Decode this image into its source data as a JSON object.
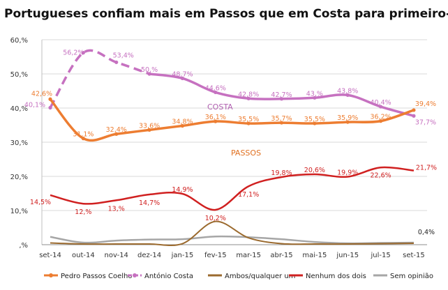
{
  "chart_data": {
    "type": "line",
    "title": "Portugueses confiam mais em Passos que em Costa para primeiro-ministro",
    "categories": [
      "set-14",
      "out-14",
      "nov-14",
      "dez-14",
      "jan-15",
      "fev-15",
      "mar-15",
      "abr-15",
      "mai-15",
      "jun-15",
      "jul-15",
      "set-15"
    ],
    "y_ticks": [
      ",%",
      "10,%",
      "20,%",
      "30,%",
      "40,%",
      "50,%",
      "60,%"
    ],
    "ylim": [
      0,
      60
    ],
    "grid": true,
    "legend_position": "bottom",
    "series": [
      {
        "name": "Pedro Passos Coelho",
        "color": "#ED7D31",
        "values": [
          42.6,
          31.1,
          32.4,
          33.6,
          34.8,
          36.1,
          35.5,
          35.7,
          35.5,
          35.9,
          36.2,
          39.4
        ],
        "labels": [
          "42,6%",
          "31,1%",
          "32,4%",
          "33,6%",
          "34,8%",
          "36,1%",
          "35,5%",
          "35,7%",
          "35,5%",
          "35,9%",
          "36,2%",
          "39,4%"
        ]
      },
      {
        "name": "António Costa",
        "color": "#C671C0",
        "values": [
          40.1,
          56.2,
          53.4,
          50.0,
          48.7,
          44.6,
          42.8,
          42.7,
          43.0,
          43.8,
          40.4,
          37.7
        ],
        "labels": [
          "40,1%",
          "56,2%",
          "53,4%",
          "50,%",
          "48,7%",
          "44,6%",
          "42,8%",
          "42,7%",
          "43,%",
          "43,8%",
          "40,4%",
          "37,7%"
        ]
      },
      {
        "name": "Ambos/qualquer um",
        "color": "#9B6A2E",
        "values": [
          0.5,
          0.2,
          0.2,
          0.2,
          0.3,
          6.8,
          2.0,
          0.3,
          0.2,
          0.2,
          0.3,
          0.4
        ],
        "labels": [
          "",
          "",
          "",
          "",
          "",
          "",
          "",
          "",
          "",
          "",
          "",
          "0,4%"
        ]
      },
      {
        "name": "Nenhum dos dois",
        "color": "#D02020",
        "values": [
          14.5,
          12.0,
          13.0,
          14.7,
          14.9,
          10.2,
          17.1,
          19.8,
          20.6,
          19.9,
          22.6,
          21.7
        ],
        "labels": [
          "14,5%",
          "12,%",
          "13,%",
          "14,7%",
          "14,9%",
          "10,2%",
          "17,1%",
          "19,8%",
          "20,6%",
          "19,9%",
          "22,6%",
          "21,7%"
        ]
      },
      {
        "name": "Sem opinião",
        "color": "#A6A6A6",
        "values": [
          2.3,
          0.6,
          1.2,
          1.5,
          1.6,
          2.4,
          2.2,
          1.6,
          0.8,
          0.4,
          0.5,
          0.6
        ],
        "labels": [
          "",
          "",
          "",
          "",
          "",
          "",
          "",
          "",
          "",
          "",
          "",
          ""
        ]
      }
    ],
    "series_annotations": [
      {
        "text": "COSTA",
        "color": "#B060B0"
      },
      {
        "text": "PASSOS",
        "color": "#E07020"
      }
    ]
  }
}
